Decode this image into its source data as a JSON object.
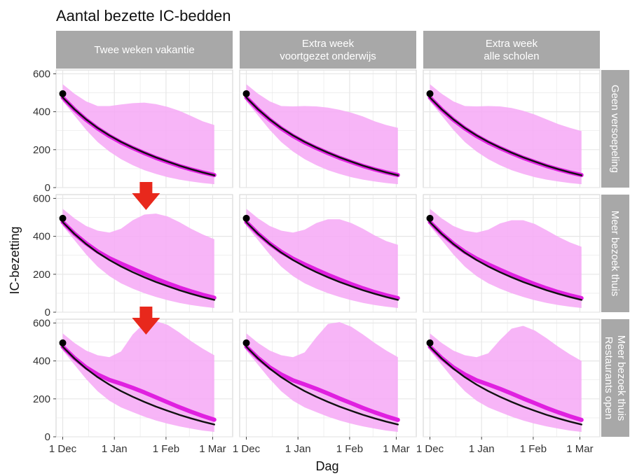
{
  "chart_data": {
    "type": "line",
    "title": "Aantal bezette IC-bedden",
    "xlabel": "Dag",
    "ylabel": "IC-bezetting",
    "ylim": [
      0,
      620
    ],
    "x_tick_labels": [
      "1 Dec",
      "1 Jan",
      "1 Feb",
      "1 Mar"
    ],
    "x_tick_values": [
      0,
      31,
      62,
      90
    ],
    "x_range": [
      -4,
      102
    ],
    "y_ticks": [
      0,
      200,
      400,
      600
    ],
    "grid": true,
    "colors": {
      "band": "#f6a8f6",
      "scenario_line": "#e020e0",
      "baseline_line": "#111111",
      "point": "#000000",
      "arrow": "#e8281c",
      "strip": "#a8a8a8",
      "panel_grid": "#e6e6e6"
    },
    "columns": [
      "Twee weken vakantie",
      "Extra week\nvoortgezet onderwijs",
      "Extra week\nalle scholen"
    ],
    "rows": [
      "Geen versoepeling",
      "Meer bezoek thuis",
      "Meer bezoek thuis\nRestaurants open"
    ],
    "x": [
      0,
      7,
      14,
      21,
      28,
      35,
      42,
      49,
      56,
      63,
      70,
      77,
      84,
      91
    ],
    "baseline": [
      475,
      413,
      360,
      314,
      275,
      241,
      211,
      184,
      159,
      137,
      116,
      97,
      80,
      65
    ],
    "observed_point": {
      "x": 0,
      "y": 495
    },
    "panels": [
      {
        "col": 0,
        "row": 0,
        "median": [
          475,
          412,
          358,
          312,
          272,
          238,
          209,
          182,
          157,
          135,
          114,
          96,
          80,
          66
        ],
        "upper": [
          545,
          495,
          455,
          430,
          430,
          438,
          445,
          448,
          440,
          425,
          405,
          378,
          350,
          330
        ],
        "lower": [
          455,
          380,
          305,
          240,
          190,
          150,
          118,
          92,
          72,
          55,
          42,
          32,
          24,
          18
        ]
      },
      {
        "col": 1,
        "row": 0,
        "median": [
          475,
          412,
          358,
          312,
          272,
          238,
          209,
          182,
          157,
          135,
          114,
          96,
          80,
          66
        ],
        "upper": [
          545,
          495,
          455,
          430,
          428,
          430,
          428,
          422,
          410,
          395,
          375,
          350,
          330,
          315
        ],
        "lower": [
          455,
          380,
          305,
          240,
          190,
          150,
          118,
          92,
          72,
          55,
          42,
          32,
          24,
          18
        ]
      },
      {
        "col": 2,
        "row": 0,
        "median": [
          475,
          412,
          358,
          312,
          272,
          238,
          209,
          182,
          157,
          135,
          114,
          96,
          80,
          66
        ],
        "upper": [
          545,
          495,
          455,
          430,
          428,
          430,
          428,
          420,
          405,
          385,
          360,
          335,
          315,
          298
        ],
        "lower": [
          455,
          380,
          305,
          240,
          190,
          150,
          118,
          92,
          72,
          55,
          42,
          32,
          24,
          18
        ]
      },
      {
        "col": 0,
        "row": 1,
        "median": [
          475,
          414,
          363,
          320,
          285,
          256,
          229,
          202,
          176,
          152,
          130,
          110,
          92,
          76
        ],
        "upper": [
          545,
          495,
          455,
          430,
          420,
          440,
          485,
          515,
          520,
          505,
          475,
          440,
          410,
          385
        ],
        "lower": [
          455,
          380,
          305,
          240,
          190,
          152,
          124,
          100,
          80,
          63,
          49,
          38,
          29,
          22
        ]
      },
      {
        "col": 1,
        "row": 1,
        "median": [
          475,
          414,
          362,
          318,
          282,
          252,
          224,
          197,
          172,
          148,
          126,
          106,
          89,
          74
        ],
        "upper": [
          545,
          495,
          455,
          430,
          420,
          435,
          470,
          490,
          490,
          470,
          440,
          405,
          375,
          355
        ],
        "lower": [
          455,
          380,
          305,
          240,
          190,
          152,
          124,
          100,
          80,
          63,
          49,
          38,
          29,
          22
        ]
      },
      {
        "col": 2,
        "row": 1,
        "median": [
          475,
          414,
          362,
          318,
          282,
          252,
          224,
          197,
          172,
          148,
          126,
          106,
          89,
          74
        ],
        "upper": [
          545,
          495,
          455,
          430,
          420,
          435,
          468,
          485,
          485,
          465,
          432,
          398,
          368,
          345
        ],
        "lower": [
          455,
          380,
          305,
          240,
          190,
          152,
          124,
          100,
          80,
          63,
          49,
          38,
          29,
          22
        ]
      },
      {
        "col": 0,
        "row": 2,
        "median": [
          475,
          415,
          366,
          328,
          300,
          280,
          258,
          234,
          208,
          182,
          156,
          132,
          110,
          90
        ],
        "upper": [
          545,
          495,
          455,
          430,
          420,
          450,
          540,
          600,
          610,
          590,
          550,
          505,
          465,
          430
        ],
        "lower": [
          455,
          380,
          305,
          240,
          190,
          155,
          130,
          106,
          86,
          69,
          55,
          43,
          33,
          26
        ]
      },
      {
        "col": 1,
        "row": 2,
        "median": [
          475,
          415,
          366,
          328,
          298,
          276,
          253,
          228,
          202,
          177,
          152,
          129,
          108,
          89
        ],
        "upper": [
          545,
          495,
          455,
          430,
          420,
          445,
          525,
          595,
          605,
          580,
          540,
          495,
          455,
          420
        ],
        "lower": [
          455,
          380,
          305,
          240,
          190,
          155,
          130,
          106,
          86,
          69,
          55,
          43,
          33,
          26
        ]
      },
      {
        "col": 2,
        "row": 2,
        "median": [
          475,
          415,
          366,
          328,
          298,
          276,
          253,
          228,
          202,
          177,
          152,
          129,
          108,
          89
        ],
        "upper": [
          545,
          495,
          455,
          430,
          420,
          440,
          510,
          570,
          585,
          560,
          520,
          475,
          435,
          400
        ],
        "lower": [
          455,
          380,
          305,
          240,
          190,
          155,
          130,
          106,
          86,
          69,
          55,
          43,
          33,
          26
        ]
      }
    ],
    "arrows": [
      {
        "col": 0,
        "row": 1,
        "x": 50
      },
      {
        "col": 0,
        "row": 2,
        "x": 50
      }
    ]
  }
}
